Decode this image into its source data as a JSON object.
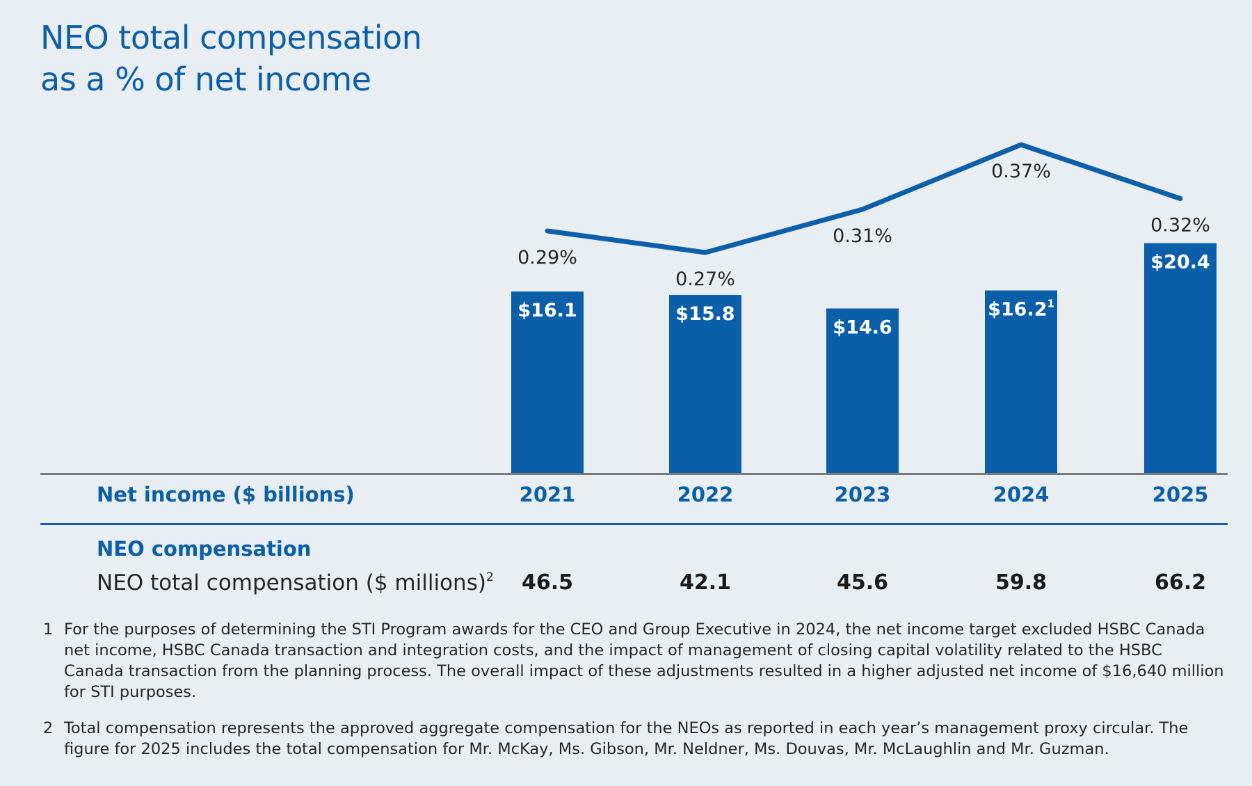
{
  "title": {
    "line1": "NEO total compensation",
    "line2": "as a % of net income"
  },
  "colors": {
    "brand_blue": "#0b5fa8",
    "axis_grey": "#77797c",
    "background": "#e9eef3"
  },
  "chart_data": {
    "type": "bar",
    "title": "NEO total compensation as a % of net income",
    "categories": [
      "2021",
      "2022",
      "2023",
      "2024",
      "2025"
    ],
    "series": [
      {
        "name": "Net income ($ billions)",
        "type": "bar",
        "values": [
          16.1,
          15.8,
          14.6,
          16.2,
          20.4
        ],
        "labels": [
          "$16.1",
          "$15.8",
          "$14.6",
          "$16.2",
          "$20.4"
        ],
        "label_superscripts": [
          "",
          "",
          "",
          "1",
          ""
        ]
      },
      {
        "name": "NEO total compensation as a % of net income",
        "type": "line",
        "values": [
          0.29,
          0.27,
          0.31,
          0.37,
          0.32
        ],
        "labels": [
          "0.29%",
          "0.27%",
          "0.31%",
          "0.37%",
          "0.32%"
        ]
      }
    ],
    "xlabel": "Net income ($ billions)",
    "ylabel": "",
    "ylim": [
      0,
      25
    ]
  },
  "table": {
    "net_income_label": "Net income ($ billions)",
    "section_heading": "NEO compensation",
    "compensation_label": "NEO total compensation ($ millions)",
    "compensation_label_superscript": "2",
    "compensation_values": [
      "46.5",
      "42.1",
      "45.6",
      "59.8",
      "66.2"
    ]
  },
  "footnotes": [
    {
      "number": "1",
      "text": "For the purposes of determining the STI Program awards for the CEO and Group Executive in 2024, the net income target excluded HSBC Canada net income, HSBC Canada transaction and integration costs, and the impact of management of closing capital volatility related to the HSBC Canada transaction from the planning process. The overall impact of these adjustments resulted in a higher adjusted net income of $16,640 million for STI purposes."
    },
    {
      "number": "2",
      "text": "Total compensation represents the approved aggregate compensation for the NEOs as reported in each year’s management proxy circular. The figure for 2025 includes the total compensation for Mr. McKay, Ms. Gibson, Mr. Neldner, Ms. Douvas, Mr. McLaughlin and Mr. Guzman."
    }
  ]
}
